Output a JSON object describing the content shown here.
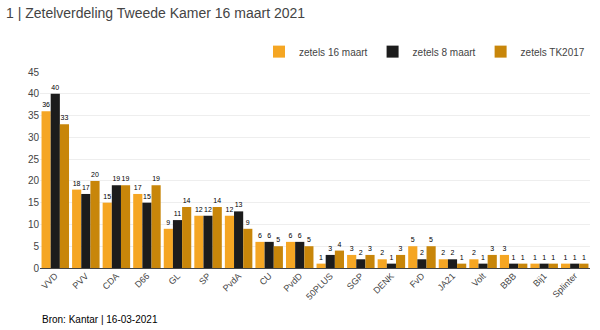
{
  "chart_data": {
    "type": "bar",
    "title": "1 | Zetelverdeling Tweede Kamer 16 maart 2021",
    "annotations": [
      "Bron: Kantar | 16-03-2021"
    ],
    "categories": [
      "VVD",
      "PVV",
      "CDA",
      "D66",
      "GL",
      "SP",
      "PvdA",
      "CU",
      "PvdD",
      "50PLUS",
      "SGP",
      "DENK",
      "FvD",
      "JA21",
      "Volt",
      "BBB",
      "Bij1",
      "Splinter"
    ],
    "series": [
      {
        "name": "zetels 16 maart",
        "color": "#F5A623",
        "values": [
          36,
          18,
          15,
          17,
          9,
          12,
          12,
          6,
          6,
          1,
          3,
          2,
          5,
          2,
          2,
          3,
          1,
          1
        ]
      },
      {
        "name": "zetels 8 maart",
        "color": "#1C1C1C",
        "values": [
          40,
          17,
          19,
          15,
          11,
          12,
          13,
          6,
          6,
          3,
          2,
          1,
          2,
          2,
          1,
          1,
          1,
          1
        ]
      },
      {
        "name": "zetels TK2017",
        "color": "#C8860A",
        "values": [
          33,
          20,
          19,
          19,
          14,
          14,
          9,
          5,
          5,
          4,
          3,
          3,
          5,
          1,
          3,
          1,
          1,
          1
        ]
      }
    ],
    "ylim": [
      0,
      45
    ],
    "yticks": [
      0,
      5,
      10,
      15,
      20,
      25,
      30,
      35,
      40,
      45
    ],
    "grid": true,
    "legend": "upper right",
    "data_labels": true
  }
}
